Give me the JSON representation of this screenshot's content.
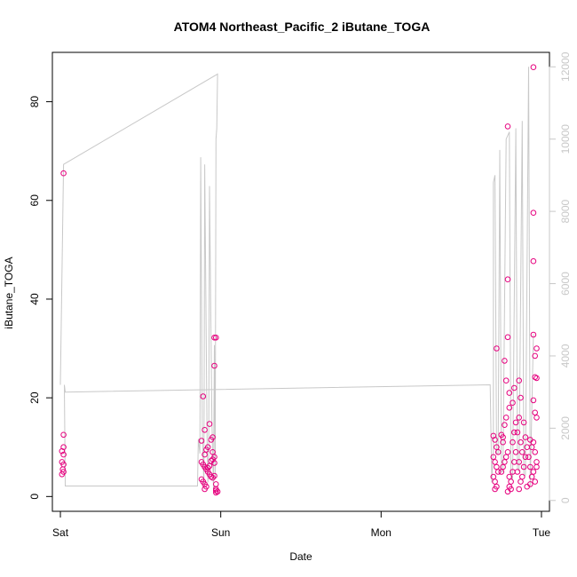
{
  "chart_data": {
    "type": "scatter",
    "title": "ATOM4 Northeast_Pacific_2 iButane_TOGA",
    "xlabel": "Date",
    "ylabel": "iButane_TOGA",
    "x_ticks": [
      "Sat",
      "Sun",
      "Mon",
      "Tue"
    ],
    "x_range_days": [
      -0.05,
      3.05
    ],
    "ylim": [
      -3,
      90
    ],
    "y_ticks": [
      0,
      20,
      40,
      60,
      80
    ],
    "y2lim": [
      -300,
      12400
    ],
    "y2_ticks": [
      0,
      2000,
      4000,
      6000,
      8000,
      10000,
      12000
    ],
    "grid": false,
    "series": [
      {
        "type": "scatter",
        "color": "#e6007e",
        "y_axis": "left",
        "points": [
          [
            0.02,
            65.5
          ],
          [
            0.02,
            12.5
          ],
          [
            0.02,
            10
          ],
          [
            0.01,
            9.2
          ],
          [
            0.02,
            8.5
          ],
          [
            0.01,
            7
          ],
          [
            0.02,
            6.5
          ],
          [
            0.015,
            5.5
          ],
          [
            0.02,
            5
          ],
          [
            0.01,
            4.5
          ],
          [
            0.89,
            20.3
          ],
          [
            0.88,
            11.3
          ],
          [
            0.9,
            13.5
          ],
          [
            0.91,
            9.5
          ],
          [
            0.93,
            14.7
          ],
          [
            0.95,
            12
          ],
          [
            0.94,
            11.5
          ],
          [
            0.92,
            10
          ],
          [
            0.9,
            8.5
          ],
          [
            0.95,
            9
          ],
          [
            0.96,
            8
          ],
          [
            0.88,
            7
          ],
          [
            0.89,
            6.5
          ],
          [
            0.9,
            6
          ],
          [
            0.91,
            5.5
          ],
          [
            0.92,
            5
          ],
          [
            0.93,
            4.5
          ],
          [
            0.94,
            4
          ],
          [
            0.95,
            7.5
          ],
          [
            0.96,
            6.8
          ],
          [
            0.88,
            3.5
          ],
          [
            0.89,
            3
          ],
          [
            0.9,
            2.5
          ],
          [
            0.91,
            2
          ],
          [
            0.92,
            5.8
          ],
          [
            0.93,
            6.2
          ],
          [
            0.94,
            7.2
          ],
          [
            0.95,
            3.8
          ],
          [
            0.96,
            4.2
          ],
          [
            0.9,
            1.5
          ],
          [
            0.97,
            2.5
          ],
          [
            0.97,
            1.2
          ],
          [
            0.97,
            0.8
          ],
          [
            0.98,
            1
          ],
          [
            0.96,
            32.2
          ],
          [
            0.97,
            32.2
          ],
          [
            0.96,
            26.5
          ],
          [
            0.97,
            1.5
          ],
          [
            2.72,
            30
          ],
          [
            2.7,
            12.3
          ],
          [
            2.71,
            11.5
          ],
          [
            2.72,
            10
          ],
          [
            2.73,
            9
          ],
          [
            2.7,
            8
          ],
          [
            2.71,
            7
          ],
          [
            2.72,
            6
          ],
          [
            2.73,
            5
          ],
          [
            2.7,
            4
          ],
          [
            2.71,
            3
          ],
          [
            2.72,
            2
          ],
          [
            2.71,
            1.5
          ],
          [
            2.75,
            12.5
          ],
          [
            2.76,
            11
          ],
          [
            2.77,
            27.5
          ],
          [
            2.78,
            23.5
          ],
          [
            2.79,
            44
          ],
          [
            2.79,
            32.3
          ],
          [
            2.79,
            75
          ],
          [
            2.8,
            21
          ],
          [
            2.8,
            18
          ],
          [
            2.78,
            16
          ],
          [
            2.77,
            14.5
          ],
          [
            2.76,
            12
          ],
          [
            2.79,
            9
          ],
          [
            2.78,
            8
          ],
          [
            2.77,
            7
          ],
          [
            2.76,
            6
          ],
          [
            2.75,
            5
          ],
          [
            2.8,
            4
          ],
          [
            2.81,
            3
          ],
          [
            2.8,
            2
          ],
          [
            2.79,
            1
          ],
          [
            2.82,
            19
          ],
          [
            2.83,
            22
          ],
          [
            2.84,
            15
          ],
          [
            2.83,
            13
          ],
          [
            2.82,
            11
          ],
          [
            2.84,
            9
          ],
          [
            2.83,
            7
          ],
          [
            2.82,
            5
          ],
          [
            2.81,
            1.5
          ],
          [
            2.86,
            23.5
          ],
          [
            2.87,
            20
          ],
          [
            2.86,
            16
          ],
          [
            2.85,
            13
          ],
          [
            2.87,
            11
          ],
          [
            2.88,
            9
          ],
          [
            2.86,
            7
          ],
          [
            2.85,
            5
          ],
          [
            2.87,
            3
          ],
          [
            2.86,
            1.5
          ],
          [
            2.89,
            15
          ],
          [
            2.9,
            12
          ],
          [
            2.91,
            10
          ],
          [
            2.9,
            8
          ],
          [
            2.89,
            6
          ],
          [
            2.88,
            4
          ],
          [
            2.91,
            2
          ],
          [
            2.93,
            11.5
          ],
          [
            2.94,
            10
          ],
          [
            2.92,
            8
          ],
          [
            2.93,
            6
          ],
          [
            2.94,
            4
          ],
          [
            2.93,
            2.5
          ],
          [
            2.95,
            87
          ],
          [
            2.95,
            57.5
          ],
          [
            2.95,
            47.7
          ],
          [
            2.95,
            32.8
          ],
          [
            2.96,
            28.5
          ],
          [
            2.97,
            30
          ],
          [
            2.96,
            24.2
          ],
          [
            2.97,
            24
          ],
          [
            2.95,
            19.5
          ],
          [
            2.96,
            17
          ],
          [
            2.97,
            16
          ],
          [
            2.95,
            11
          ],
          [
            2.96,
            9
          ],
          [
            2.97,
            7
          ],
          [
            2.95,
            5
          ],
          [
            2.96,
            3
          ],
          [
            2.97,
            6
          ]
        ]
      },
      {
        "type": "line",
        "color": "#c8c8c8",
        "y_axis": "right",
        "points": [
          [
            0.0,
            3200
          ],
          [
            0.02,
            9300
          ],
          [
            0.98,
            11800
          ],
          [
            0.975,
            10300
          ],
          [
            0.97,
            10000
          ],
          [
            0.965,
            600
          ],
          [
            0.96,
            4300
          ],
          [
            0.955,
            300
          ],
          [
            0.945,
            2200
          ],
          [
            0.93,
            8700
          ],
          [
            0.925,
            1200
          ],
          [
            0.92,
            500
          ],
          [
            0.915,
            1600
          ],
          [
            0.9,
            9300
          ],
          [
            0.895,
            400
          ],
          [
            0.885,
            1900
          ],
          [
            0.875,
            9500
          ],
          [
            0.87,
            1300
          ],
          [
            0.86,
            1700
          ],
          [
            0.855,
            400
          ],
          [
            0.03,
            400
          ],
          [
            0.025,
            3200
          ],
          [
            0.03,
            3000
          ],
          [
            2.68,
            3200
          ],
          [
            2.69,
            500
          ],
          [
            2.7,
            1500
          ],
          [
            2.7,
            8800
          ],
          [
            2.71,
            9000
          ],
          [
            2.72,
            1300
          ],
          [
            2.73,
            1300
          ],
          [
            2.74,
            9700
          ],
          [
            2.75,
            800
          ],
          [
            2.76,
            800
          ],
          [
            2.78,
            10000
          ],
          [
            2.8,
            10200
          ],
          [
            2.81,
            600
          ],
          [
            2.82,
            600
          ],
          [
            2.84,
            10300
          ],
          [
            2.85,
            900
          ],
          [
            2.86,
            800
          ],
          [
            2.88,
            10500
          ],
          [
            2.89,
            700
          ],
          [
            2.9,
            700
          ],
          [
            2.92,
            12000
          ],
          [
            2.93,
            400
          ],
          [
            2.95,
            4600
          ]
        ]
      }
    ]
  }
}
